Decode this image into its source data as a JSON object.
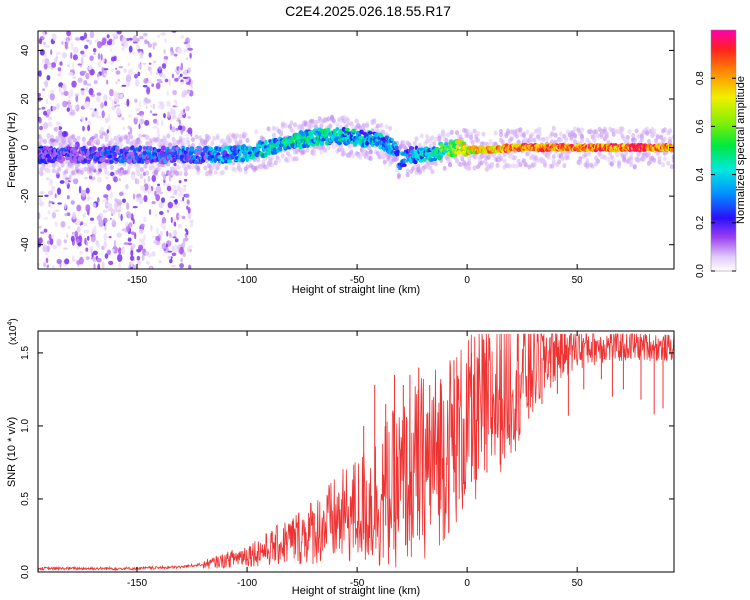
{
  "title": "C2E4.2025.026.18.55.R17",
  "colors": {
    "snr_line": "#ee3333",
    "axis": "#000000",
    "background": "#ffffff"
  },
  "chart_data": [
    {
      "type": "heatmap",
      "name": "spectrogram",
      "xlabel": "Height of straight line (km)",
      "ylabel": "Frequency (Hz)",
      "xlim": [
        -195,
        94
      ],
      "ylim": [
        -50,
        48
      ],
      "xticks": [
        -150,
        -100,
        -50,
        0,
        50
      ],
      "xtick_labels": [
        "-150",
        "-100",
        "-50",
        "0",
        "50"
      ],
      "yticks": [
        -40,
        -20,
        0,
        20,
        40
      ],
      "ytick_labels": [
        "-40",
        "-20",
        "0",
        "20",
        "40"
      ],
      "ridge": {
        "x": [
          -195,
          -180,
          -160,
          -140,
          -120,
          -110,
          -100,
          -90,
          -80,
          -70,
          -60,
          -50,
          -40,
          -33,
          -31,
          -28,
          -25,
          -20,
          -15,
          -10,
          -5,
          0,
          10,
          20,
          40,
          60,
          80,
          94
        ],
        "freq": [
          -3,
          -3,
          -3,
          -3,
          -3,
          -3,
          -2,
          0,
          3,
          4,
          5,
          4,
          3,
          0,
          -6,
          -4,
          -3,
          -3,
          -2,
          -1,
          0,
          -1,
          -1,
          0,
          0,
          0,
          0,
          0
        ],
        "amp": [
          0.12,
          0.15,
          0.18,
          0.22,
          0.26,
          0.3,
          0.34,
          0.38,
          0.4,
          0.4,
          0.38,
          0.36,
          0.34,
          0.3,
          0.25,
          0.28,
          0.3,
          0.35,
          0.4,
          0.5,
          0.6,
          0.7,
          0.75,
          0.82,
          0.85,
          0.85,
          0.85,
          0.8
        ]
      }
    },
    {
      "type": "colorbar",
      "name": "amplitude-colorbar",
      "label": "Normalized spectral amplitude",
      "range": [
        0,
        1
      ],
      "ticks": [
        0,
        0.2,
        0.4,
        0.6,
        0.8
      ],
      "tick_labels": [
        "0.0",
        "0.2",
        "0.4",
        "0.6",
        "0.8"
      ]
    },
    {
      "type": "line",
      "name": "snr",
      "xlabel": "Height of straight line (km)",
      "ylabel": "SNR (10 * v/v)",
      "scale_label": "(x10",
      "scale_exponent": "4",
      "scale_close": ")",
      "xlim": [
        -195,
        94
      ],
      "ylim": [
        0,
        1.65
      ],
      "xticks": [
        -150,
        -100,
        -50,
        0,
        50
      ],
      "xtick_labels": [
        "-150",
        "-100",
        "-50",
        "0",
        "50"
      ],
      "yticks": [
        0,
        0.5,
        1.0,
        1.5
      ],
      "ytick_labels": [
        "0.0",
        "0.5",
        "1.0",
        "1.5"
      ],
      "envelope": {
        "x": [
          -195,
          -150,
          -130,
          -120,
          -110,
          -100,
          -90,
          -80,
          -70,
          -60,
          -50,
          -40,
          -30,
          -20,
          -10,
          0,
          10,
          20,
          30,
          40,
          50,
          60,
          70,
          80,
          94
        ],
        "y": [
          0.02,
          0.02,
          0.03,
          0.05,
          0.08,
          0.12,
          0.16,
          0.22,
          0.28,
          0.35,
          0.42,
          0.5,
          0.6,
          0.72,
          0.85,
          1.0,
          1.15,
          1.3,
          1.43,
          1.52,
          1.55,
          1.55,
          1.55,
          1.55,
          1.53
        ]
      },
      "noise": {
        "x": [
          -195,
          -120,
          -80,
          -50,
          -40,
          -20,
          0,
          20,
          40,
          60,
          94
        ],
        "frac": [
          0.5,
          0.6,
          0.8,
          0.9,
          1.0,
          0.9,
          0.6,
          0.4,
          0.15,
          0.08,
          0.06
        ]
      },
      "spikes_up": [
        {
          "x": -47,
          "y": 1.0
        },
        {
          "x": -42,
          "y": 1.28
        },
        {
          "x": -37,
          "y": 1.15
        },
        {
          "x": -33,
          "y": 1.35
        },
        {
          "x": -29,
          "y": 1.28
        },
        {
          "x": -26,
          "y": 1.35
        },
        {
          "x": -22,
          "y": 1.4
        },
        {
          "x": -17,
          "y": 1.28
        },
        {
          "x": -12,
          "y": 1.32
        },
        {
          "x": -6,
          "y": 1.45
        },
        {
          "x": 2,
          "y": 1.5
        },
        {
          "x": 9,
          "y": 1.45
        },
        {
          "x": 15,
          "y": 1.52
        }
      ],
      "spikes_down": [
        {
          "x": 24,
          "y": 0.95
        },
        {
          "x": 28,
          "y": 1.05
        },
        {
          "x": 34,
          "y": 1.15
        },
        {
          "x": 41,
          "y": 1.22
        },
        {
          "x": 46,
          "y": 1.07
        },
        {
          "x": 53,
          "y": 1.25
        },
        {
          "x": 61,
          "y": 1.32
        },
        {
          "x": 66,
          "y": 1.2
        },
        {
          "x": 71,
          "y": 1.25
        },
        {
          "x": 79,
          "y": 1.18
        },
        {
          "x": 85,
          "y": 1.08
        },
        {
          "x": 89,
          "y": 1.12
        }
      ]
    }
  ]
}
